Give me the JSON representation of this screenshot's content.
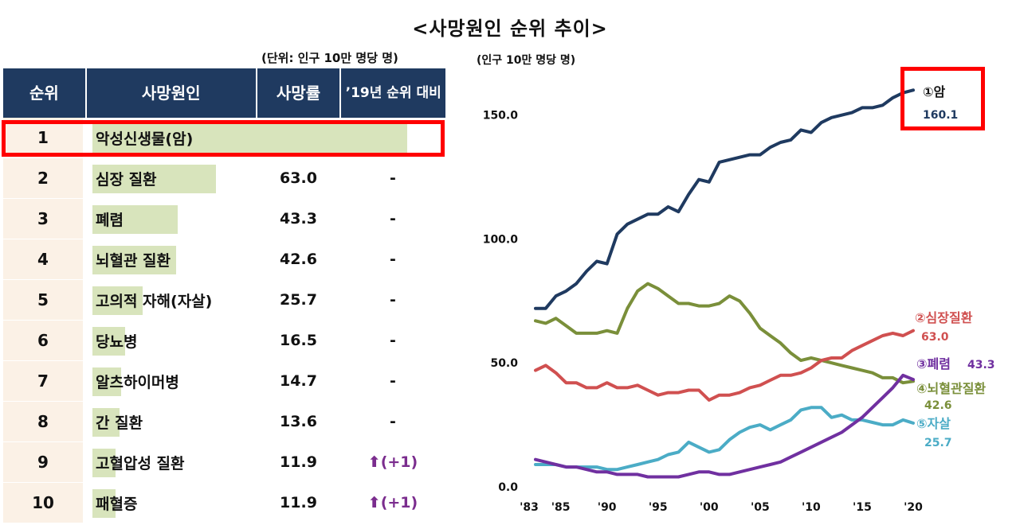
{
  "title": "<사망원인 순위 추이>",
  "table": {
    "unit": "(단위: 인구 10만 명당 명)",
    "headers": [
      "순위",
      "사망원인",
      "사망률",
      "’19년 순위 대비"
    ],
    "rows": [
      {
        "rank": "1",
        "cause": "악성신생물(암)",
        "rate": "160.1",
        "rate_value": 160.1,
        "change": "-"
      },
      {
        "rank": "2",
        "cause": "심장 질환",
        "rate": "63.0",
        "rate_value": 63.0,
        "change": "-"
      },
      {
        "rank": "3",
        "cause": "폐렴",
        "rate": "43.3",
        "rate_value": 43.3,
        "change": "-"
      },
      {
        "rank": "4",
        "cause": "뇌혈관 질환",
        "rate": "42.6",
        "rate_value": 42.6,
        "change": "-"
      },
      {
        "rank": "5",
        "cause": "고의적 자해(자살)",
        "rate": "25.7",
        "rate_value": 25.7,
        "change": "-"
      },
      {
        "rank": "6",
        "cause": "당뇨병",
        "rate": "16.5",
        "rate_value": 16.5,
        "change": "-"
      },
      {
        "rank": "7",
        "cause": "알츠하이머병",
        "rate": "14.7",
        "rate_value": 14.7,
        "change": "-"
      },
      {
        "rank": "8",
        "cause": "간 질환",
        "rate": "13.6",
        "rate_value": 13.6,
        "change": "-"
      },
      {
        "rank": "9",
        "cause": "고혈압성 질환",
        "rate": "11.9",
        "rate_value": 11.9,
        "change": "⬆(+1)"
      },
      {
        "rank": "10",
        "cause": "패혈증",
        "rate": "11.9",
        "rate_value": 11.9,
        "change": "⬆(+1)"
      }
    ]
  },
  "chart_data": {
    "type": "line",
    "ylabel": "(인구 10만 명당 명)",
    "ylim": [
      0,
      165
    ],
    "yticks": [
      0,
      50,
      100,
      150
    ],
    "ytick_labels": [
      "0.0",
      "50.0",
      "100.0",
      "150.0"
    ],
    "xlim": [
      1983,
      2020
    ],
    "xticks": [
      1983,
      1985,
      1990,
      1995,
      2000,
      2005,
      2010,
      2015,
      2020
    ],
    "xtick_labels": [
      "'83",
      "'85",
      "'90",
      "'95",
      "'00",
      "'05",
      "'10",
      "'15",
      "'20"
    ],
    "x": [
      1983,
      1984,
      1985,
      1986,
      1987,
      1988,
      1989,
      1990,
      1991,
      1992,
      1993,
      1994,
      1995,
      1996,
      1997,
      1998,
      1999,
      2000,
      2001,
      2002,
      2003,
      2004,
      2005,
      2006,
      2007,
      2008,
      2009,
      2010,
      2011,
      2012,
      2013,
      2014,
      2015,
      2016,
      2017,
      2018,
      2019,
      2020
    ],
    "series": [
      {
        "name": "①암",
        "end_label": "160.1",
        "color": "#1f3a60",
        "values": [
          72,
          72,
          77,
          79,
          82,
          87,
          91,
          90,
          102,
          106,
          108,
          110,
          110,
          113,
          111,
          118,
          124,
          123,
          131,
          132,
          133,
          134,
          134,
          137,
          139,
          140,
          144,
          143,
          147,
          149,
          150,
          151,
          153,
          153,
          154,
          157,
          159,
          160.1
        ]
      },
      {
        "name": "②심장질환",
        "end_label": "63.0",
        "color": "#d05050",
        "values": [
          47,
          49,
          46,
          42,
          42,
          40,
          40,
          42,
          40,
          40,
          41,
          39,
          37,
          38,
          38,
          39,
          39,
          35,
          37,
          37,
          38,
          40,
          41,
          43,
          45,
          45,
          46,
          48,
          51,
          52,
          52,
          55,
          57,
          59,
          61,
          62,
          61,
          63.0
        ]
      },
      {
        "name": "③폐렴",
        "end_label": "43.3",
        "color": "#7030a0",
        "values": [
          11,
          10,
          9,
          8,
          8,
          7,
          6,
          6,
          5,
          5,
          5,
          4,
          4,
          4,
          4,
          5,
          6,
          6,
          5,
          5,
          6,
          7,
          8,
          9,
          10,
          12,
          14,
          16,
          18,
          20,
          22,
          25,
          28,
          32,
          36,
          40,
          45,
          43.3
        ]
      },
      {
        "name": "④뇌혈관질환",
        "end_label": "42.6",
        "color": "#7a8f3a",
        "values": [
          67,
          66,
          68,
          65,
          62,
          62,
          62,
          63,
          62,
          72,
          79,
          82,
          80,
          77,
          74,
          74,
          73,
          73,
          74,
          77,
          75,
          70,
          64,
          61,
          58,
          54,
          51,
          52,
          51,
          50,
          49,
          48,
          47,
          46,
          44,
          44,
          42,
          42.6
        ]
      },
      {
        "name": "⑤자살",
        "end_label": "25.7",
        "color": "#4bacc6",
        "values": [
          9,
          9,
          9,
          8,
          8,
          8,
          8,
          7,
          7,
          8,
          9,
          10,
          11,
          13,
          14,
          18,
          16,
          14,
          15,
          19,
          22,
          24,
          25,
          23,
          25,
          27,
          31,
          32,
          32,
          28,
          29,
          27,
          27,
          26,
          25,
          25,
          27,
          25.7
        ]
      }
    ]
  }
}
